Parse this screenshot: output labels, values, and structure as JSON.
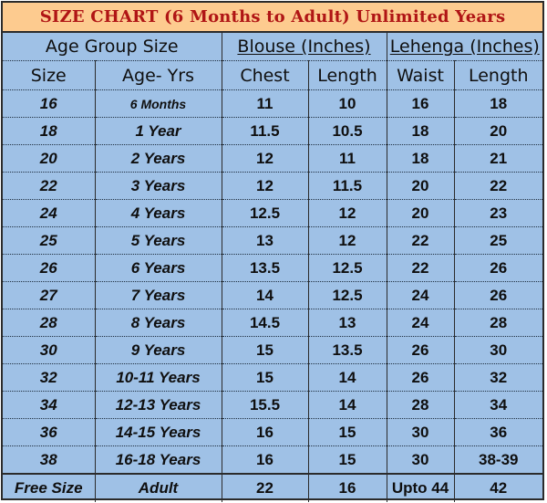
{
  "title": "SIZE CHART (6 Months to Adult) Unlimited Years",
  "groups": {
    "age_group": "Age Group Size",
    "blouse": "Blouse (Inches)",
    "lehenga": "Lehenga (Inches)"
  },
  "columns": {
    "size": "Size",
    "age": "Age- Yrs",
    "chest": "Chest",
    "blouse_length": "Length",
    "waist": "Waist",
    "lehenga_length": "Length"
  },
  "rows": [
    {
      "size": "16",
      "age": "6 Months",
      "chest": "11",
      "blouse_length": "10",
      "waist": "16",
      "lehenga_length": "18"
    },
    {
      "size": "18",
      "age": "1 Year",
      "chest": "11.5",
      "blouse_length": "10.5",
      "waist": "18",
      "lehenga_length": "20"
    },
    {
      "size": "20",
      "age": "2 Years",
      "chest": "12",
      "blouse_length": "11",
      "waist": "18",
      "lehenga_length": "21"
    },
    {
      "size": "22",
      "age": "3 Years",
      "chest": "12",
      "blouse_length": "11.5",
      "waist": "20",
      "lehenga_length": "22"
    },
    {
      "size": "24",
      "age": "4 Years",
      "chest": "12.5",
      "blouse_length": "12",
      "waist": "20",
      "lehenga_length": "23"
    },
    {
      "size": "25",
      "age": "5 Years",
      "chest": "13",
      "blouse_length": "12",
      "waist": "22",
      "lehenga_length": "25"
    },
    {
      "size": "26",
      "age": "6 Years",
      "chest": "13.5",
      "blouse_length": "12.5",
      "waist": "22",
      "lehenga_length": "26"
    },
    {
      "size": "27",
      "age": "7 Years",
      "chest": "14",
      "blouse_length": "12.5",
      "waist": "24",
      "lehenga_length": "26"
    },
    {
      "size": "28",
      "age": "8 Years",
      "chest": "14.5",
      "blouse_length": "13",
      "waist": "24",
      "lehenga_length": "28"
    },
    {
      "size": "30",
      "age": "9 Years",
      "chest": "15",
      "blouse_length": "13.5",
      "waist": "26",
      "lehenga_length": "30"
    },
    {
      "size": "32",
      "age": "10-11 Years",
      "chest": "15",
      "blouse_length": "14",
      "waist": "26",
      "lehenga_length": "32"
    },
    {
      "size": "34",
      "age": "12-13 Years",
      "chest": "15.5",
      "blouse_length": "14",
      "waist": "28",
      "lehenga_length": "34"
    },
    {
      "size": "36",
      "age": "14-15 Years",
      "chest": "16",
      "blouse_length": "15",
      "waist": "30",
      "lehenga_length": "36"
    },
    {
      "size": "38",
      "age": "16-18 Years",
      "chest": "16",
      "blouse_length": "15",
      "waist": "30",
      "lehenga_length": "38-39"
    }
  ],
  "footer": {
    "size": "Free Size",
    "age": "Adult",
    "chest": "22",
    "blouse_length": "16",
    "waist": "Upto 44",
    "lehenga_length": "42"
  },
  "colors": {
    "title_bg": "#fdcb8f",
    "title_text": "#b01515",
    "table_bg": "#9fc1e6"
  }
}
